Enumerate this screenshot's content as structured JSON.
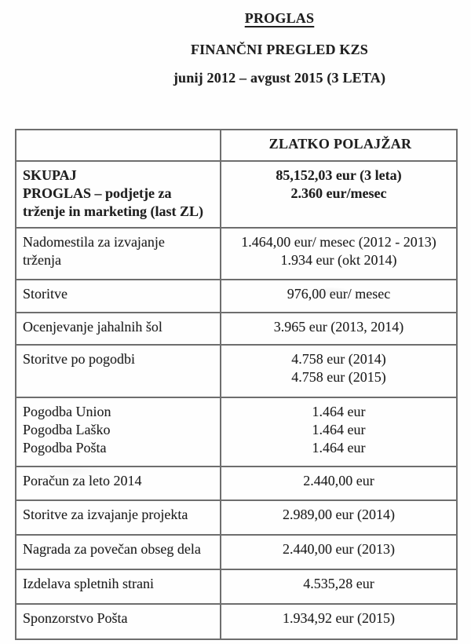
{
  "header": {
    "title": "PROGLAS",
    "subtitle": "FINANČNI PREGLED KZS",
    "period": "junij 2012 – avgust 2015 (3 LETA)"
  },
  "table": {
    "column_header": "ZLATKO POLAJŽAR",
    "rows": [
      {
        "label": "SKUPAJ\nPROGLAS – podjetje za\ntrženje in marketing (last ZL)",
        "value": "85,152,03 eur (3 leta)\n2.360 eur/mesec",
        "bold": true
      },
      {
        "label": "Nadomestila za izvajanje\ntrženja",
        "value": "1.464,00 eur/ mesec (2012 - 2013)\n1.934 eur (okt 2014)",
        "bold": false
      },
      {
        "label": "Storitve",
        "value": "976,00 eur/ mesec",
        "bold": false
      },
      {
        "label": "Ocenjevanje jahalnih šol",
        "value": "3.965 eur (2013, 2014)",
        "bold": false
      },
      {
        "label": "Storitve po pogodbi",
        "value": "4.758 eur (2014)\n4.758 eur (2015)",
        "bold": false
      },
      {
        "label": "Pogodba Union\nPogodba Laško\nPogodba Pošta",
        "value": "1.464 eur\n1.464 eur\n1.464 eur",
        "bold": false
      },
      {
        "label": "Poračun za leto 2014",
        "value": "2.440,00 eur",
        "bold": false
      },
      {
        "label": "Storitve za izvajanje projekta",
        "value": "2.989,00 eur (2014)",
        "bold": false
      },
      {
        "label": "Nagrada za povečan obseg dela",
        "value": "2.440,00 eur (2013)",
        "bold": false
      },
      {
        "label": "Izdelava spletnih strani",
        "value": "4.535,28 eur",
        "bold": false
      },
      {
        "label": "Sponzorstvo Pošta",
        "value": "1.934,92 eur (2015)",
        "bold": false
      }
    ]
  }
}
